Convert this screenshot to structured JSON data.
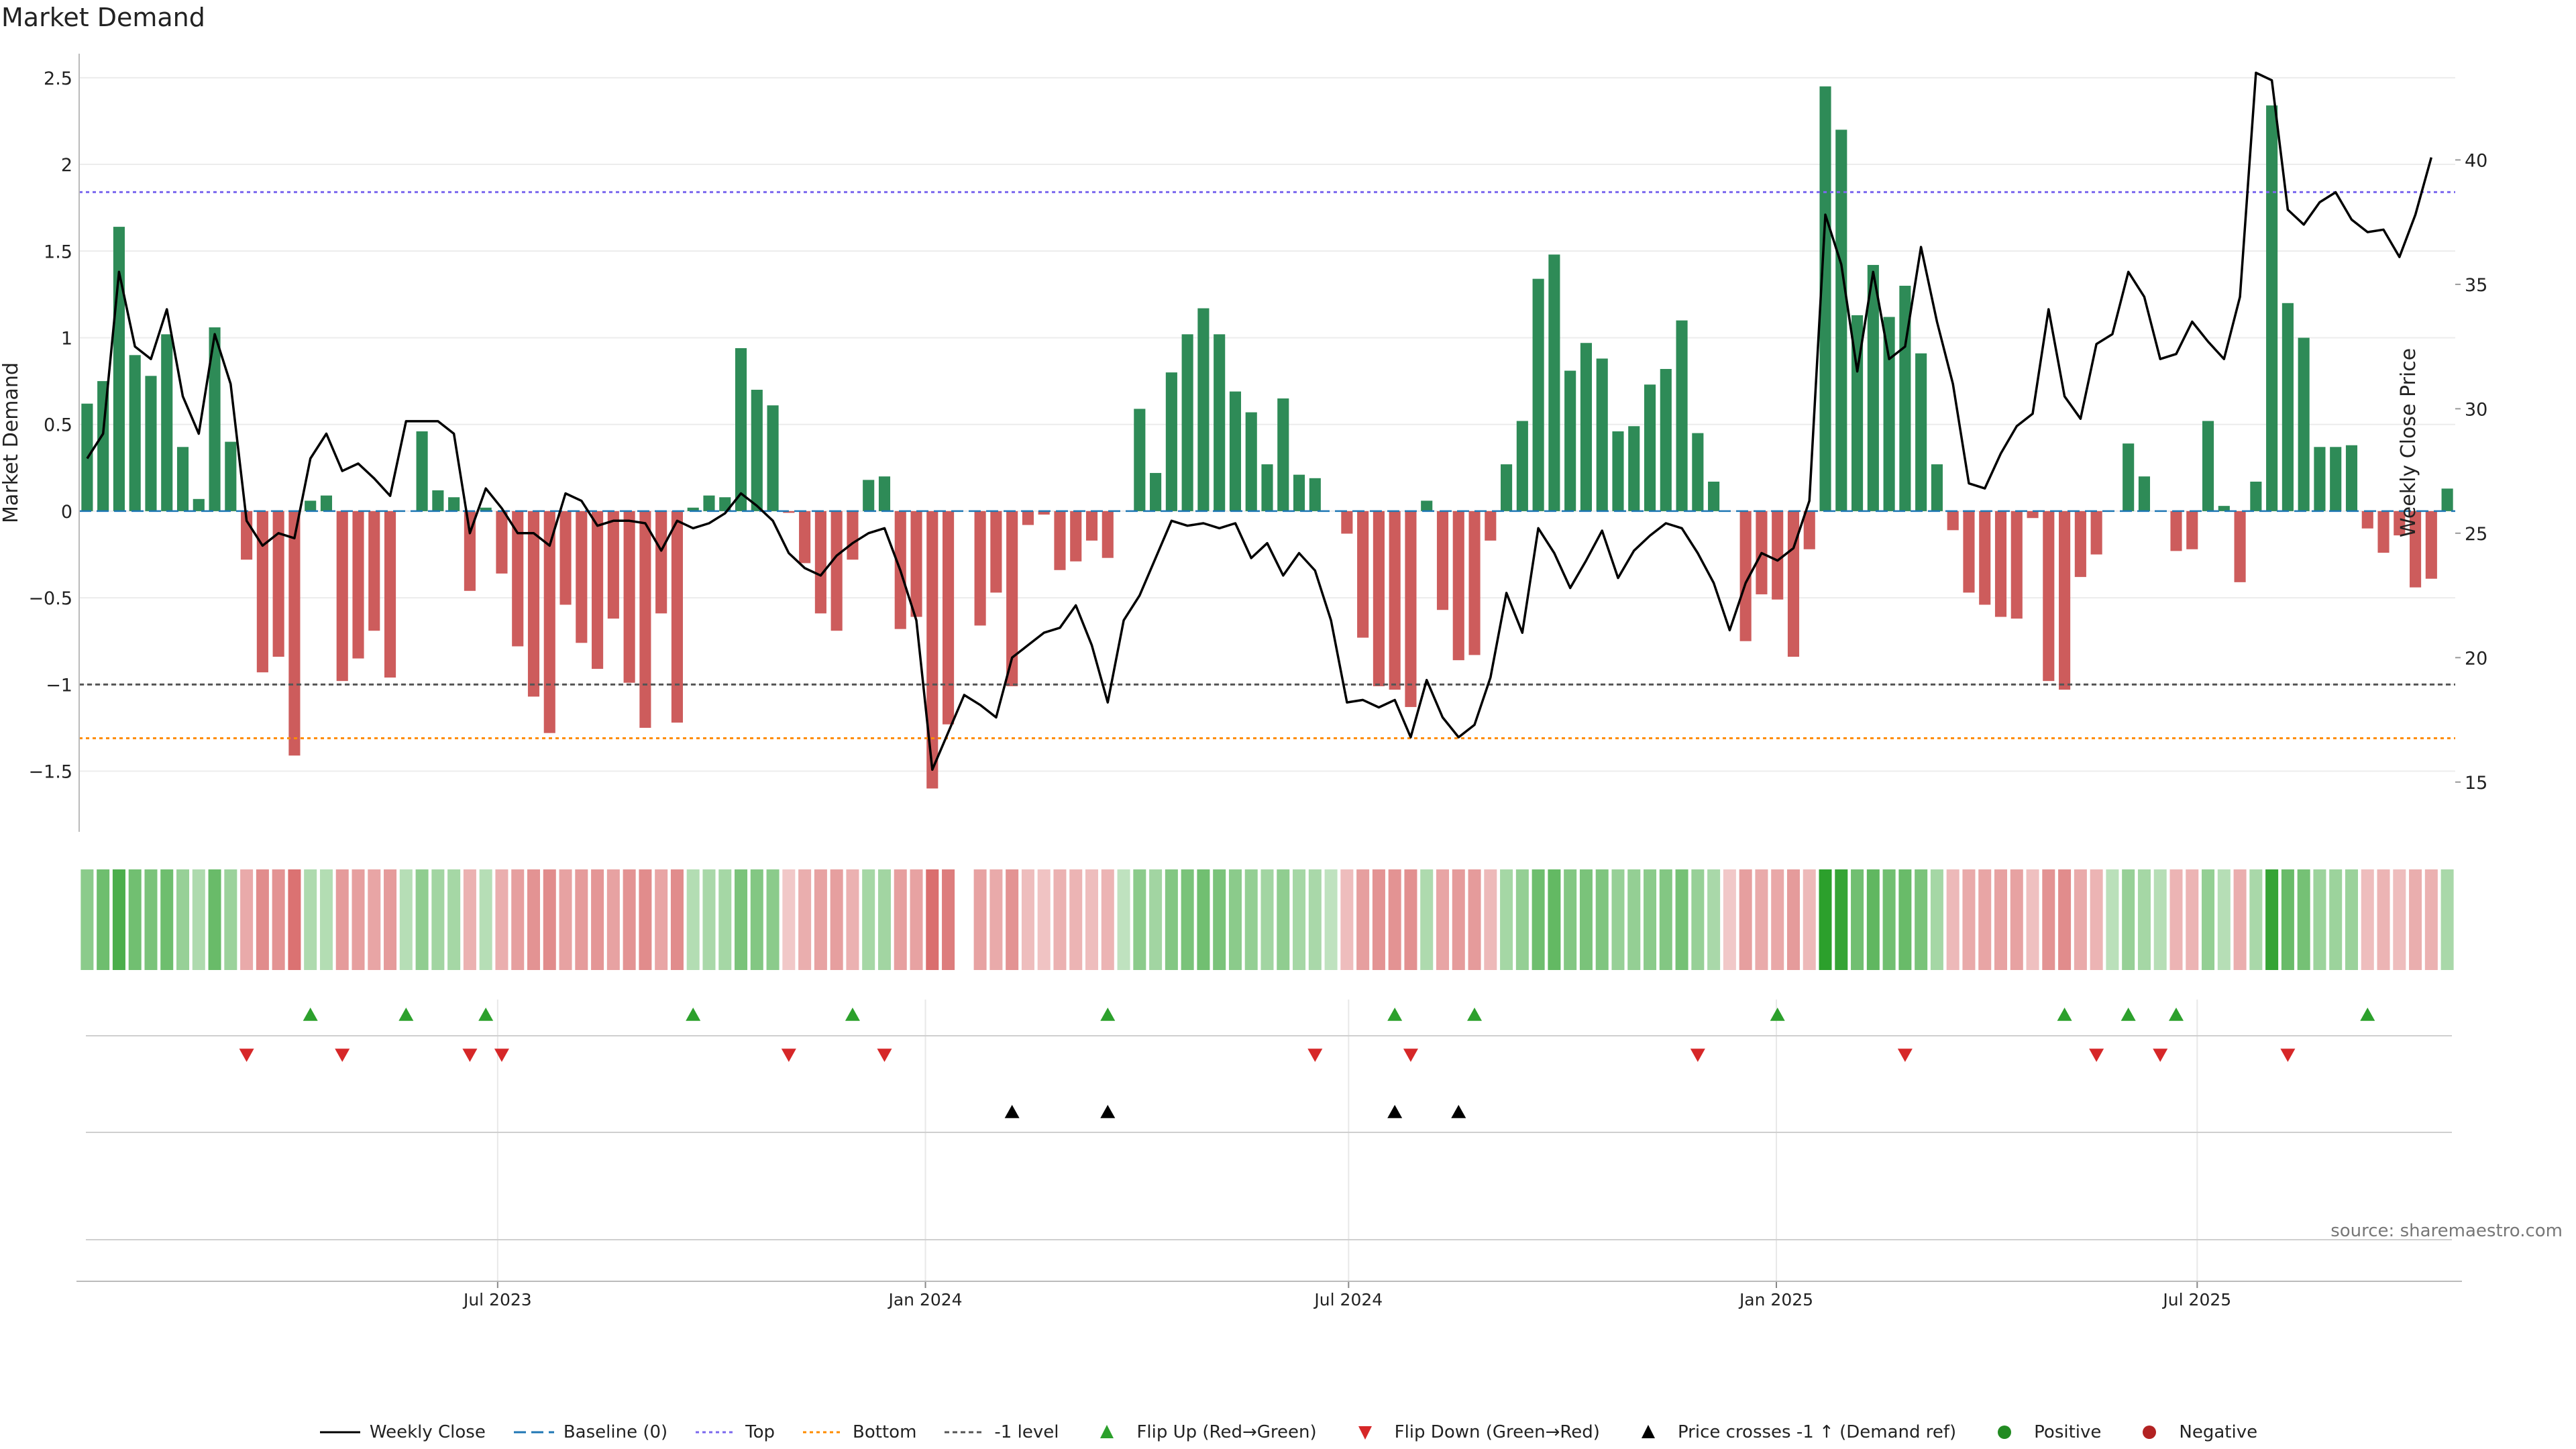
{
  "title": "Market Demand",
  "source": "source: sharemaestro.com",
  "colors": {
    "positive": "#2e8b57",
    "negative": "#cd5c5c",
    "price": "#000000",
    "baseline": "#1f77b4",
    "top": "#7b68ee",
    "bottom": "#ff8c00",
    "minus_one": "#555555",
    "flip_up": "#2ca02c",
    "flip_down": "#d62728",
    "cross": "#000000",
    "heat_pos": "#2ca02c",
    "heat_neg": "#d04848"
  },
  "chart_data": {
    "type": "bar",
    "title": "Market Demand",
    "ylabel": "Market Demand",
    "y2label": "Weekly Close Price",
    "ylim": [
      -1.85,
      2.6
    ],
    "y2lim": [
      13,
      44
    ],
    "yticks": [
      -1.5,
      -1,
      -0.5,
      0,
      0.5,
      1,
      1.5,
      2,
      2.5
    ],
    "yticklabels": [
      "−1.5",
      "−1",
      "−0.5",
      "0",
      "0.5",
      "1",
      "1.5",
      "2",
      "2.5"
    ],
    "y2ticks": [
      15,
      20,
      25,
      30,
      35,
      40
    ],
    "x_start": "2023-01-02",
    "x_end": "2025-10-20",
    "xticks": [
      {
        "date": "2023-07-01",
        "label": "Jul 2023"
      },
      {
        "date": "2024-01-01",
        "label": "Jan 2024"
      },
      {
        "date": "2024-07-01",
        "label": "Jul 2024"
      },
      {
        "date": "2025-01-01",
        "label": "Jan 2025"
      },
      {
        "date": "2025-07-01",
        "label": "Jul 2025"
      }
    ],
    "reference_lines": {
      "baseline": 0,
      "top": 1.84,
      "bottom": -1.31,
      "minus_one": -1
    },
    "demand": [
      0.62,
      0.75,
      1.64,
      0.9,
      0.78,
      1.02,
      0.37,
      0.07,
      1.06,
      0.4,
      -0.28,
      -0.93,
      -0.84,
      -1.41,
      0.06,
      0.09,
      -0.98,
      -0.85,
      -0.69,
      -0.96,
      0,
      0.46,
      0.12,
      0.08,
      -0.46,
      0.02,
      -0.36,
      -0.78,
      -1.07,
      -1.28,
      -0.54,
      -0.76,
      -0.91,
      -0.62,
      -0.99,
      -1.25,
      -0.59,
      -1.22,
      0.02,
      0.09,
      0.08,
      0.94,
      0.7,
      0.61,
      -0.01,
      -0.3,
      -0.59,
      -0.69,
      -0.28,
      0.18,
      0.2,
      -0.68,
      -0.61,
      -1.6,
      -1.23,
      0,
      -0.66,
      -0.47,
      -1.01,
      -0.08,
      -0.02,
      -0.34,
      -0.29,
      -0.17,
      -0.27,
      0,
      0.59,
      0.22,
      0.8,
      1.02,
      1.17,
      1.02,
      0.69,
      0.57,
      0.27,
      0.65,
      0.21,
      0.19,
      0,
      -0.13,
      -0.73,
      -1.01,
      -1.03,
      -1.13,
      0.06,
      -0.57,
      -0.86,
      -0.83,
      -0.17,
      0.27,
      0.52,
      1.34,
      1.48,
      0.81,
      0.97,
      0.88,
      0.46,
      0.49,
      0.73,
      0.82,
      1.1,
      0.45,
      0.17,
      0,
      -0.75,
      -0.48,
      -0.51,
      -0.84,
      -0.22,
      2.45,
      2.2,
      1.13,
      1.42,
      1.12,
      1.3,
      0.91,
      0.27,
      -0.11,
      -0.47,
      -0.54,
      -0.61,
      -0.62,
      -0.04,
      -0.98,
      -1.03,
      -0.38,
      -0.25,
      0,
      0.39,
      0.2,
      0,
      -0.23,
      -0.22,
      0.52,
      0.03,
      -0.41,
      0.17,
      2.34,
      1.2,
      1,
      0.37,
      0.37,
      0.38,
      -0.1,
      -0.24,
      -0.14,
      -0.44,
      -0.39,
      0.13
    ],
    "price": [
      28,
      29,
      35.5,
      32.5,
      32,
      34,
      30.5,
      29,
      33,
      31,
      25.5,
      24.5,
      25,
      24.8,
      28,
      29,
      27.5,
      27.8,
      27.2,
      26.5,
      29.5,
      29.5,
      29.5,
      29,
      25,
      26.8,
      26,
      25,
      25,
      24.5,
      26.6,
      26.3,
      25.3,
      25.5,
      25.5,
      25.4,
      24.3,
      25.5,
      25.2,
      25.4,
      25.8,
      26.6,
      26.1,
      25.5,
      24.2,
      23.6,
      23.3,
      24.1,
      24.6,
      25,
      25.2,
      23.5,
      21.5,
      15.5,
      17,
      18.5,
      18.1,
      17.6,
      20,
      20.5,
      21,
      21.2,
      22.1,
      20.5,
      18.2,
      21.5,
      22.5,
      24,
      25.5,
      25.3,
      25.4,
      25.2,
      25.4,
      24,
      24.6,
      23.3,
      24.2,
      23.5,
      21.5,
      18.2,
      18.3,
      18,
      18.3,
      16.8,
      19.1,
      17.6,
      16.8,
      17.3,
      19.2,
      22.6,
      21,
      25.2,
      24.2,
      22.8,
      23.9,
      25.1,
      23.2,
      24.3,
      24.9,
      25.4,
      25.2,
      24.2,
      23,
      21.1,
      23,
      24.2,
      23.9,
      24.4,
      26.3,
      37.8,
      35.8,
      31.5,
      35.5,
      32,
      32.5,
      36.5,
      33.5,
      31,
      27,
      26.8,
      28.2,
      29.3,
      29.8,
      34,
      30.5,
      29.6,
      32.6,
      33,
      35.5,
      34.5,
      32,
      32.2,
      33.5,
      32.7,
      32,
      34.5,
      43.5,
      43.2,
      38,
      37.4,
      38.3,
      38.7,
      37.6,
      37.1,
      37.2,
      36.1,
      37.8,
      40.1
    ],
    "heat": [
      0.45,
      0.62,
      0.82,
      0.6,
      0.55,
      0.62,
      0.38,
      0.25,
      0.65,
      0.36,
      -0.35,
      -0.55,
      -0.5,
      -0.72,
      0.25,
      0.22,
      -0.45,
      -0.42,
      -0.38,
      -0.45,
      0.2,
      0.42,
      0.32,
      0.3,
      -0.3,
      0.2,
      -0.32,
      -0.42,
      -0.5,
      -0.55,
      -0.4,
      -0.45,
      -0.48,
      -0.4,
      -0.5,
      -0.55,
      -0.38,
      -0.55,
      0.22,
      0.28,
      0.3,
      0.55,
      0.5,
      0.45,
      -0.15,
      -0.32,
      -0.4,
      -0.42,
      -0.3,
      0.3,
      0.32,
      -0.42,
      -0.4,
      -0.75,
      -0.65,
      0,
      -0.4,
      -0.35,
      -0.5,
      -0.22,
      -0.18,
      -0.3,
      -0.28,
      -0.22,
      -0.28,
      0.15,
      0.45,
      0.32,
      0.5,
      0.55,
      0.6,
      0.55,
      0.45,
      0.4,
      0.32,
      0.42,
      0.3,
      0.28,
      0.15,
      -0.22,
      -0.42,
      -0.5,
      -0.5,
      -0.52,
      0.25,
      -0.38,
      -0.45,
      -0.45,
      -0.25,
      0.3,
      0.4,
      0.62,
      0.68,
      0.5,
      0.55,
      0.52,
      0.38,
      0.4,
      0.45,
      0.5,
      0.58,
      0.38,
      0.28,
      -0.15,
      -0.42,
      -0.35,
      -0.36,
      -0.45,
      -0.25,
      1,
      0.95,
      0.6,
      0.7,
      0.6,
      0.65,
      0.55,
      0.3,
      -0.25,
      -0.35,
      -0.38,
      -0.4,
      -0.4,
      -0.2,
      -0.5,
      -0.55,
      -0.35,
      -0.28,
      0.18,
      0.38,
      0.3,
      0.2,
      -0.28,
      -0.28,
      0.4,
      0.2,
      -0.32,
      0.28,
      0.95,
      0.65,
      0.58,
      0.35,
      0.35,
      0.36,
      -0.22,
      -0.28,
      -0.22,
      -0.32,
      -0.3,
      0.28
    ],
    "flip_up_weeks": [
      14,
      20,
      25,
      38,
      48,
      64,
      82,
      87,
      106,
      124,
      128,
      131,
      143
    ],
    "flip_down_weeks": [
      10,
      16,
      24,
      26,
      44,
      50,
      77,
      83,
      101,
      114,
      126,
      130,
      138
    ],
    "price_cross_weeks": [
      58,
      64,
      82,
      86
    ],
    "legend": [
      "Weekly Close",
      "Baseline (0)",
      "Top",
      "Bottom",
      "-1 level",
      "Flip Up (Red→Green)",
      "Flip Down (Green→Red)",
      "Price crosses -1 ↑ (Demand ref)",
      "Positive",
      "Negative"
    ]
  }
}
